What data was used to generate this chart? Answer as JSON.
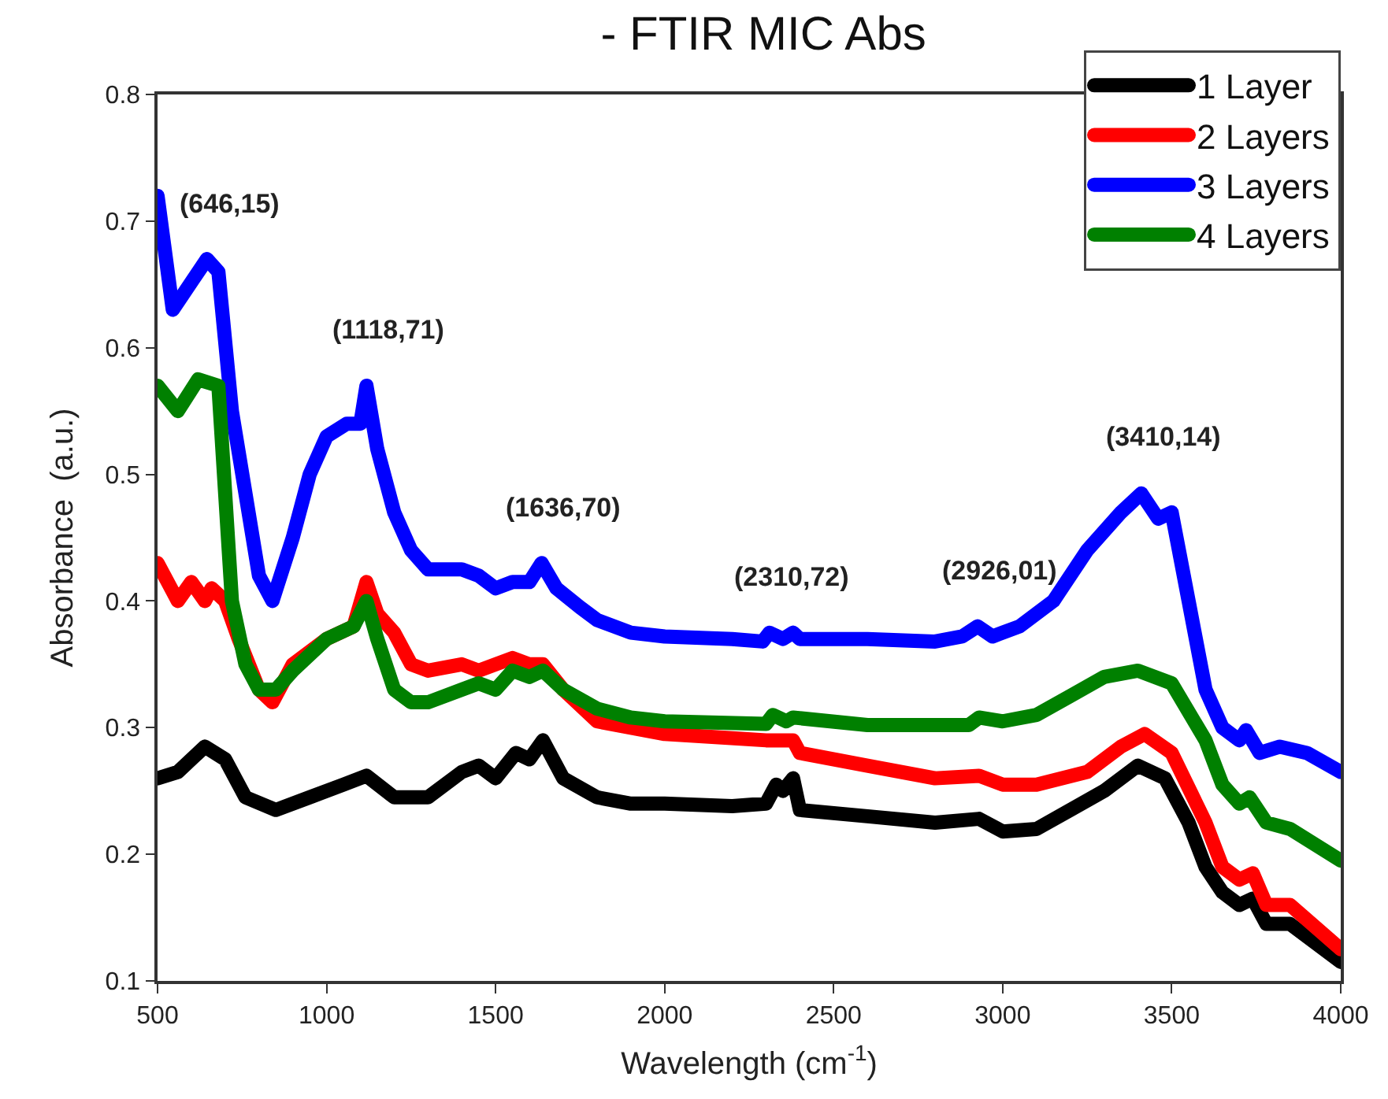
{
  "chart_data": {
    "type": "line",
    "title": "- FTIR MIC Abs",
    "xlabel": "Wavelength (cm$^{-1}$)",
    "ylabel": "Absorbance  (a.u.)",
    "xlim": [
      500,
      4000
    ],
    "xticks": [
      500,
      1000,
      1500,
      2000,
      2500,
      3000,
      3500,
      4000
    ],
    "ylim": [
      0.1,
      0.8
    ],
    "yticks": [
      {
        "value": 0.1,
        "label": "0.1"
      },
      {
        "value": 0.2,
        "label": "0.2"
      },
      {
        "value": 0.3,
        "label": "0.3"
      },
      {
        "value": 0.4,
        "label": "0.4"
      },
      {
        "value": 0.5,
        "label": "0.5"
      },
      {
        "value": 0.6,
        "label": "0.6"
      },
      {
        "value": 0.7,
        "label": "0.7"
      },
      {
        "value": 0.8,
        "label": "0.8"
      }
    ],
    "legend": "top right",
    "line_style": "solid",
    "series": [
      {
        "name": "1 Layer",
        "color": "#000000",
        "x": [
          500,
          560,
          640,
          700,
          760,
          850,
          950,
          1050,
          1118,
          1200,
          1300,
          1400,
          1450,
          1500,
          1560,
          1600,
          1640,
          1700,
          1800,
          1900,
          2000,
          2200,
          2300,
          2330,
          2350,
          2380,
          2400,
          2600,
          2800,
          2930,
          3000,
          3100,
          3200,
          3300,
          3400,
          3480,
          3550,
          3600,
          3650,
          3700,
          3740,
          3780,
          3850,
          4000
        ],
        "values": [
          0.26,
          0.265,
          0.285,
          0.275,
          0.245,
          0.235,
          0.245,
          0.255,
          0.262,
          0.245,
          0.245,
          0.265,
          0.27,
          0.26,
          0.28,
          0.275,
          0.29,
          0.26,
          0.245,
          0.24,
          0.24,
          0.238,
          0.24,
          0.255,
          0.25,
          0.26,
          0.235,
          0.23,
          0.225,
          0.228,
          0.218,
          0.22,
          0.235,
          0.25,
          0.27,
          0.26,
          0.225,
          0.19,
          0.17,
          0.16,
          0.165,
          0.145,
          0.145,
          0.115
        ]
      },
      {
        "name": "2 Layers",
        "color": "#ff0000",
        "x": [
          500,
          560,
          600,
          640,
          660,
          700,
          740,
          800,
          840,
          900,
          1000,
          1080,
          1118,
          1150,
          1200,
          1250,
          1300,
          1400,
          1450,
          1500,
          1550,
          1600,
          1640,
          1700,
          1800,
          2000,
          2300,
          2380,
          2400,
          2600,
          2800,
          2930,
          3000,
          3100,
          3250,
          3350,
          3420,
          3500,
          3600,
          3650,
          3700,
          3740,
          3780,
          3850,
          4000
        ],
        "values": [
          0.43,
          0.4,
          0.415,
          0.4,
          0.41,
          0.4,
          0.37,
          0.33,
          0.32,
          0.35,
          0.37,
          0.38,
          0.415,
          0.39,
          0.375,
          0.35,
          0.345,
          0.35,
          0.345,
          0.35,
          0.355,
          0.35,
          0.35,
          0.33,
          0.305,
          0.295,
          0.29,
          0.29,
          0.28,
          0.27,
          0.26,
          0.262,
          0.255,
          0.255,
          0.265,
          0.285,
          0.295,
          0.28,
          0.225,
          0.19,
          0.18,
          0.185,
          0.16,
          0.16,
          0.125
        ]
      },
      {
        "name": "3 Layers",
        "color": "#0000ff",
        "x": [
          500,
          545,
          646,
          680,
          720,
          800,
          840,
          900,
          950,
          1000,
          1060,
          1100,
          1118,
          1150,
          1200,
          1250,
          1300,
          1400,
          1450,
          1500,
          1550,
          1600,
          1636,
          1680,
          1750,
          1800,
          1900,
          2000,
          2200,
          2290,
          2310,
          2350,
          2380,
          2400,
          2600,
          2800,
          2880,
          2926,
          2970,
          3050,
          3150,
          3250,
          3350,
          3410,
          3460,
          3500,
          3550,
          3600,
          3650,
          3700,
          3720,
          3760,
          3820,
          3900,
          4000
        ],
        "values": [
          0.72,
          0.63,
          0.67,
          0.66,
          0.55,
          0.42,
          0.4,
          0.45,
          0.5,
          0.53,
          0.54,
          0.54,
          0.57,
          0.52,
          0.47,
          0.44,
          0.425,
          0.425,
          0.42,
          0.41,
          0.415,
          0.415,
          0.43,
          0.41,
          0.395,
          0.385,
          0.375,
          0.372,
          0.37,
          0.368,
          0.375,
          0.37,
          0.375,
          0.37,
          0.37,
          0.368,
          0.372,
          0.38,
          0.372,
          0.38,
          0.4,
          0.44,
          0.47,
          0.485,
          0.465,
          0.47,
          0.4,
          0.33,
          0.3,
          0.29,
          0.298,
          0.28,
          0.285,
          0.28,
          0.265
        ]
      },
      {
        "name": "4 Layers",
        "color": "#008000",
        "x": [
          500,
          560,
          620,
          680,
          720,
          760,
          800,
          850,
          900,
          1000,
          1080,
          1118,
          1150,
          1200,
          1250,
          1300,
          1400,
          1450,
          1500,
          1550,
          1600,
          1640,
          1700,
          1800,
          1900,
          2000,
          2300,
          2320,
          2360,
          2380,
          2600,
          2900,
          2930,
          3000,
          3100,
          3200,
          3300,
          3400,
          3500,
          3600,
          3650,
          3700,
          3730,
          3780,
          3850,
          4000
        ],
        "values": [
          0.57,
          0.55,
          0.575,
          0.57,
          0.4,
          0.35,
          0.33,
          0.33,
          0.345,
          0.37,
          0.38,
          0.4,
          0.37,
          0.33,
          0.32,
          0.32,
          0.33,
          0.335,
          0.33,
          0.345,
          0.34,
          0.345,
          0.33,
          0.315,
          0.308,
          0.305,
          0.303,
          0.31,
          0.305,
          0.308,
          0.302,
          0.302,
          0.308,
          0.305,
          0.31,
          0.325,
          0.34,
          0.345,
          0.335,
          0.29,
          0.255,
          0.24,
          0.245,
          0.225,
          0.22,
          0.195
        ]
      }
    ],
    "annotations": [
      {
        "text": "(646,15)",
        "x": 646,
        "y": 0.67
      },
      {
        "text": "(1118,71)",
        "x": 1118,
        "y": 0.57
      },
      {
        "text": "(1636,70)",
        "x": 1636,
        "y": 0.43
      },
      {
        "text": "(2310,72)",
        "x": 2310,
        "y": 0.375
      },
      {
        "text": "(2926,01)",
        "x": 2926,
        "y": 0.38
      },
      {
        "text": "(3410,14)",
        "x": 3410,
        "y": 0.485
      }
    ]
  }
}
